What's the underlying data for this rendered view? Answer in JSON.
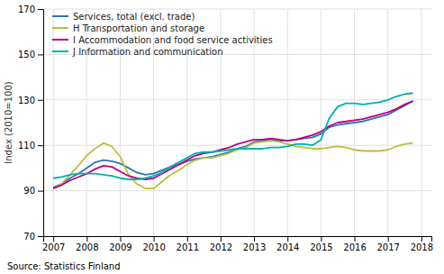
{
  "chart_data": {
    "type": "line",
    "ylabel": "Index (2010=100)",
    "annotations": [
      "Source: Statistics Finland"
    ],
    "xlim": [
      2006.7,
      2018.3
    ],
    "xticks": [
      2007,
      2008,
      2009,
      2010,
      2011,
      2012,
      2013,
      2014,
      2015,
      2016,
      2017,
      2018
    ],
    "ylim": [
      70,
      170
    ],
    "yticks": [
      70,
      90,
      110,
      130,
      150,
      170
    ],
    "grid": true,
    "legend": "upper left",
    "x": [
      2007.0,
      2007.25,
      2007.5,
      2007.75,
      2008.0,
      2008.25,
      2008.5,
      2008.75,
      2009.0,
      2009.25,
      2009.5,
      2009.75,
      2010.0,
      2010.25,
      2010.5,
      2010.75,
      2011.0,
      2011.25,
      2011.5,
      2011.75,
      2012.0,
      2012.25,
      2012.5,
      2012.75,
      2013.0,
      2013.25,
      2013.5,
      2013.75,
      2014.0,
      2014.25,
      2014.5,
      2014.75,
      2015.0,
      2015.25,
      2015.5,
      2015.75,
      2016.0,
      2016.25,
      2016.5,
      2016.75,
      2017.0,
      2017.25,
      2017.5,
      2017.75
    ],
    "series": [
      {
        "name": "Services, total (excl. trade)",
        "color": "#2E75B6",
        "values": [
          91.5,
          93.0,
          95.5,
          97.5,
          100.0,
          102.5,
          103.5,
          103.0,
          102.0,
          100.0,
          98.0,
          97.0,
          97.5,
          99.0,
          100.5,
          101.5,
          103.0,
          104.0,
          104.5,
          105.0,
          106.0,
          107.0,
          108.5,
          109.5,
          111.5,
          112.0,
          112.5,
          112.0,
          112.0,
          112.5,
          113.0,
          113.5,
          115.0,
          118.0,
          119.0,
          119.5,
          120.0,
          120.5,
          121.5,
          122.5,
          123.5,
          125.5,
          127.5,
          129.5
        ]
      },
      {
        "name": "H Transportation and storage",
        "color": "#BBBE3A",
        "values": [
          91.0,
          93.0,
          97.0,
          101.0,
          105.5,
          108.5,
          111.0,
          109.5,
          105.0,
          97.0,
          93.0,
          91.0,
          91.0,
          94.0,
          97.0,
          99.0,
          101.5,
          103.5,
          104.5,
          104.5,
          105.5,
          106.5,
          108.0,
          109.0,
          111.0,
          111.5,
          112.0,
          111.5,
          110.5,
          109.5,
          109.0,
          108.5,
          108.5,
          109.0,
          109.5,
          109.0,
          108.0,
          107.5,
          107.5,
          107.5,
          108.0,
          109.5,
          110.5,
          111.0
        ]
      },
      {
        "name": "I Accommodation and food service activities",
        "color": "#C00080",
        "values": [
          91.0,
          92.5,
          94.5,
          96.0,
          97.5,
          99.5,
          101.0,
          100.5,
          98.5,
          96.5,
          95.5,
          95.0,
          95.5,
          97.5,
          99.5,
          101.5,
          103.5,
          105.5,
          106.5,
          107.0,
          108.0,
          109.0,
          110.5,
          111.5,
          112.5,
          112.5,
          113.0,
          112.5,
          112.0,
          112.5,
          113.5,
          114.5,
          116.0,
          118.5,
          120.0,
          120.5,
          121.0,
          121.5,
          122.5,
          123.5,
          124.5,
          126.0,
          128.0,
          129.5
        ]
      },
      {
        "name": "J Information and communication",
        "color": "#00B0B0",
        "values": [
          95.5,
          96.0,
          97.0,
          97.5,
          97.5,
          97.5,
          97.0,
          96.5,
          95.5,
          95.0,
          95.0,
          95.5,
          96.5,
          98.0,
          100.5,
          102.5,
          104.5,
          106.5,
          107.0,
          107.0,
          107.5,
          108.0,
          108.5,
          108.5,
          108.5,
          108.5,
          109.0,
          109.0,
          109.5,
          110.5,
          110.5,
          110.0,
          112.5,
          122.0,
          127.0,
          128.5,
          128.5,
          128.0,
          128.5,
          129.0,
          130.0,
          131.5,
          132.5,
          133.0
        ]
      }
    ]
  }
}
